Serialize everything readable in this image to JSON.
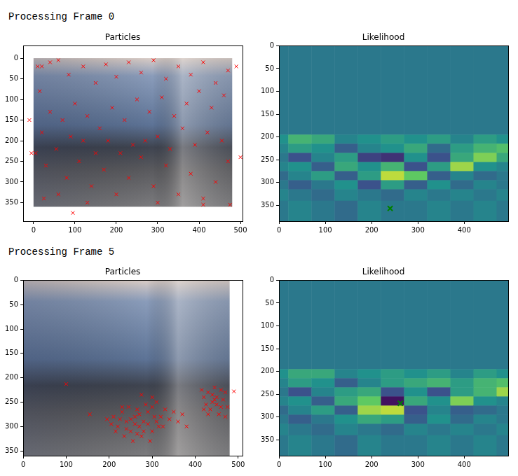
{
  "headings": [
    "Processing Frame 0",
    "Processing Frame 5"
  ],
  "chart_data": [
    {
      "type": "scatter",
      "title": "Particles",
      "grid": false,
      "xlim": [
        -25,
        505
      ],
      "ylim": [
        395,
        -30
      ],
      "xticks": [
        0,
        100,
        200,
        300,
        400,
        500
      ],
      "yticks": [
        0,
        50,
        100,
        150,
        200,
        250,
        300,
        350
      ],
      "image_extent": {
        "x": [
          0,
          480
        ],
        "y": [
          360,
          0
        ]
      },
      "series": [
        {
          "color": "red",
          "marker": "x",
          "x": [
            10,
            40,
            15,
            60,
            85,
            120,
            150,
            175,
            200,
            230,
            260,
            290,
            320,
            350,
            380,
            410,
            440,
            470,
            460,
            430,
            400,
            370,
            340,
            310,
            280,
            250,
            220,
            190,
            160,
            130,
            100,
            70,
            40,
            20,
            5,
            30,
            55,
            80,
            110,
            140,
            170,
            200,
            230,
            260,
            290,
            320,
            350,
            380,
            410,
            440,
            470,
            455,
            420,
            390,
            360,
            330,
            300,
            270,
            240,
            210,
            180,
            150,
            120,
            90,
            60,
            25,
            -5,
            -10,
            20,
            95,
            410,
            475,
            490,
            500,
            130,
            300
          ],
          "values": [
            20,
            10,
            80,
            5,
            40,
            20,
            60,
            15,
            45,
            10,
            35,
            5,
            50,
            20,
            40,
            10,
            60,
            30,
            90,
            120,
            80,
            110,
            140,
            95,
            130,
            100,
            150,
            120,
            170,
            140,
            110,
            150,
            130,
            180,
            230,
            260,
            220,
            290,
            250,
            310,
            270,
            330,
            290,
            240,
            310,
            260,
            330,
            280,
            340,
            300,
            250,
            200,
            180,
            210,
            170,
            220,
            190,
            200,
            210,
            230,
            200,
            230,
            200,
            190,
            330,
            340,
            230,
            150,
            20,
            375,
            355,
            355,
            20,
            240,
            350,
            350
          ]
        }
      ]
    },
    {
      "type": "heatmap",
      "title": "Likelihood",
      "grid": false,
      "xlim": [
        0,
        495
      ],
      "ylim": [
        385,
        0
      ],
      "xticks": [
        0,
        100,
        200,
        300,
        400
      ],
      "yticks": [
        0,
        50,
        100,
        150,
        200,
        250,
        300,
        350
      ],
      "x_edges": [
        0,
        20,
        70,
        120,
        170,
        220,
        270,
        320,
        370,
        420,
        470,
        495
      ],
      "y_edges": [
        0,
        195,
        215,
        235,
        255,
        275,
        295,
        315,
        340,
        385
      ],
      "clim": [
        -0.8,
        1.2
      ],
      "cells": [
        [
          0,
          0,
          0,
          0,
          0,
          0,
          0,
          0,
          0,
          0,
          0
        ],
        [
          0.2,
          0.5,
          0.4,
          0.1,
          0.2,
          0.3,
          0.2,
          0.3,
          0.1,
          0.3,
          0.2
        ],
        [
          0.1,
          0.3,
          0.2,
          -0.2,
          0.1,
          0.2,
          0.4,
          -0.1,
          0.3,
          0.5,
          0.6
        ],
        [
          0.0,
          -0.3,
          0.1,
          0.3,
          -0.4,
          -0.5,
          0.2,
          -0.3,
          0.4,
          0.8,
          0.4
        ],
        [
          0.1,
          0.2,
          -0.2,
          0.4,
          0.2,
          0.5,
          -0.3,
          0.3,
          0.9,
          0.2,
          0.1
        ],
        [
          -0.1,
          0.1,
          0.3,
          -0.2,
          0.3,
          1.0,
          0.7,
          -0.2,
          0.1,
          -0.1,
          0.0
        ],
        [
          0.0,
          -0.2,
          0.0,
          0.2,
          -0.3,
          0.3,
          -0.2,
          0.2,
          -0.1,
          0.1,
          0.0
        ],
        [
          0.1,
          0.0,
          -0.1,
          0.1,
          0.0,
          -0.1,
          0.1,
          0.0,
          0.1,
          0.0,
          0.1
        ],
        [
          0.0,
          0.1,
          0.0,
          -0.1,
          0.1,
          0.0,
          0.0,
          0.1,
          0.0,
          0.1,
          0.0
        ]
      ],
      "series": [
        {
          "color": "green",
          "marker": "x",
          "x": [
            240
          ],
          "values": [
            357
          ]
        }
      ]
    },
    {
      "type": "scatter",
      "title": "Particles",
      "grid": false,
      "xlim": [
        0,
        510
      ],
      "ylim": [
        360,
        0
      ],
      "xticks": [
        0,
        100,
        200,
        300,
        400,
        500
      ],
      "yticks": [
        0,
        50,
        100,
        150,
        200,
        250,
        300,
        350
      ],
      "image_extent": {
        "x": [
          0,
          480
        ],
        "y": [
          360,
          0
        ]
      },
      "series": [
        {
          "color": "red",
          "marker": "x",
          "x": [
            210,
            220,
            230,
            240,
            250,
            260,
            270,
            280,
            290,
            300,
            310,
            320,
            235,
            255,
            275,
            295,
            245,
            265,
            285,
            215,
            205,
            225,
            260,
            270,
            240,
            330,
            340,
            350,
            360,
            370,
            195,
            300,
            315,
            280,
            250,
            230,
            290,
            265,
            305,
            325,
            420,
            430,
            440,
            450,
            460,
            470,
            435,
            445,
            455,
            425,
            465,
            415,
            440,
            450,
            430,
            475,
            460,
            420,
            445,
            470,
            100,
            490,
            155,
            275,
            300,
            310,
            380
          ],
          "values": [
            280,
            300,
            270,
            290,
            310,
            280,
            300,
            290,
            270,
            310,
            290,
            280,
            320,
            330,
            320,
            330,
            260,
            265,
            255,
            310,
            295,
            285,
            295,
            275,
            305,
            265,
            285,
            270,
            290,
            275,
            285,
            260,
            300,
            310,
            285,
            260,
            295,
            315,
            280,
            300,
            240,
            230,
            250,
            240,
            260,
            230,
            265,
            220,
            275,
            255,
            245,
            225,
            235,
            255,
            275,
            260,
            225,
            265,
            245,
            280,
            213,
            228,
            275,
            235,
            240,
            250,
            300
          ]
        }
      ]
    },
    {
      "type": "heatmap",
      "title": "Likelihood",
      "grid": false,
      "xlim": [
        0,
        495
      ],
      "ylim": [
        385,
        0
      ],
      "xticks": [
        0,
        100,
        200,
        300,
        400
      ],
      "yticks": [
        0,
        50,
        100,
        150,
        200,
        250,
        300,
        350
      ],
      "x_edges": [
        0,
        20,
        70,
        120,
        170,
        220,
        270,
        320,
        370,
        420,
        470,
        495
      ],
      "y_edges": [
        0,
        195,
        215,
        235,
        255,
        275,
        295,
        315,
        340,
        385
      ],
      "clim": [
        -0.8,
        1.2
      ],
      "cells": [
        [
          0,
          0,
          0,
          0,
          0,
          0,
          0,
          0,
          0,
          0,
          0
        ],
        [
          0.2,
          0.4,
          0.4,
          0.1,
          0.2,
          0.3,
          0.2,
          0.3,
          0.1,
          0.3,
          0.2
        ],
        [
          0.1,
          0.3,
          0.2,
          -0.2,
          0.1,
          0.3,
          0.4,
          0.5,
          0.3,
          0.5,
          0.6
        ],
        [
          0.0,
          -0.3,
          0.1,
          0.3,
          0.4,
          -0.3,
          0.2,
          -0.3,
          0.3,
          0.5,
          0.9
        ],
        [
          0.1,
          0.2,
          -0.2,
          0.4,
          0.7,
          -0.7,
          0.4,
          0.2,
          0.8,
          0.2,
          0.1
        ],
        [
          -0.1,
          0.1,
          0.3,
          -0.2,
          0.9,
          1.0,
          -0.3,
          0.1,
          -0.2,
          -0.1,
          0.0
        ],
        [
          0.0,
          -0.2,
          0.0,
          0.2,
          0.4,
          0.3,
          -0.2,
          0.2,
          -0.1,
          0.1,
          0.0
        ],
        [
          0.1,
          0.0,
          -0.1,
          0.1,
          0.0,
          -0.1,
          0.1,
          0.0,
          0.1,
          0.0,
          0.1
        ],
        [
          0.0,
          0.1,
          0.0,
          -0.1,
          0.1,
          0.0,
          0.0,
          0.1,
          0.0,
          0.1,
          0.0
        ]
      ],
      "series": [
        {
          "color": "green",
          "marker": "x",
          "x": [
            262
          ],
          "values": [
            270
          ]
        }
      ]
    }
  ]
}
